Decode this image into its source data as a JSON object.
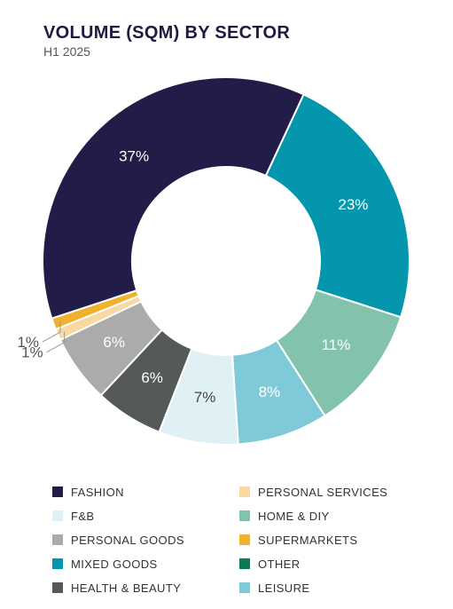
{
  "title": "VOLUME (SQM) BY SECTOR",
  "subtitle": "H1 2025",
  "chart_data": {
    "type": "pie",
    "title": "VOLUME (SQM) BY SECTOR",
    "subtitle": "H1 2025",
    "legend_position": "bottom",
    "slices": [
      {
        "name": "MIXED GOODS",
        "value": 23,
        "label": "23%",
        "color": "#0396ad"
      },
      {
        "name": "HOME & DIY",
        "value": 11,
        "label": "11%",
        "color": "#83c3ab"
      },
      {
        "name": "LEISURE",
        "value": 8,
        "label": "8%",
        "color": "#7fcad9"
      },
      {
        "name": "F&B",
        "value": 7,
        "label": "7%",
        "color": "#dff1f5"
      },
      {
        "name": "HEALTH & BEAUTY",
        "value": 6,
        "label": "6%",
        "color": "#555957"
      },
      {
        "name": "PERSONAL GOODS",
        "value": 6,
        "label": "6%",
        "color": "#ababab"
      },
      {
        "name": "PERSONAL SERVICES",
        "value": 1,
        "label": "1%",
        "color": "#fad8a1"
      },
      {
        "name": "SUPERMARKETS",
        "value": 1,
        "label": "1%",
        "color": "#efb12e"
      },
      {
        "name": "OTHER",
        "value": 0,
        "label": "",
        "color": "#0b7b55"
      },
      {
        "name": "FASHION",
        "value": 37,
        "label": "37%",
        "color": "#221c48"
      }
    ]
  },
  "legend": [
    {
      "label": "FASHION",
      "color": "#221c48"
    },
    {
      "label": "PERSONAL SERVICES",
      "color": "#fad8a1"
    },
    {
      "label": "F&B",
      "color": "#dff1f5"
    },
    {
      "label": "HOME & DIY",
      "color": "#83c3ab"
    },
    {
      "label": "PERSONAL GOODS",
      "color": "#ababab"
    },
    {
      "label": "SUPERMARKETS",
      "color": "#efb12e"
    },
    {
      "label": "MIXED GOODS",
      "color": "#0396ad"
    },
    {
      "label": "OTHER",
      "color": "#0b7b55"
    },
    {
      "label": "HEALTH & BEAUTY",
      "color": "#555957"
    },
    {
      "label": "LEISURE",
      "color": "#7fcad9"
    }
  ]
}
